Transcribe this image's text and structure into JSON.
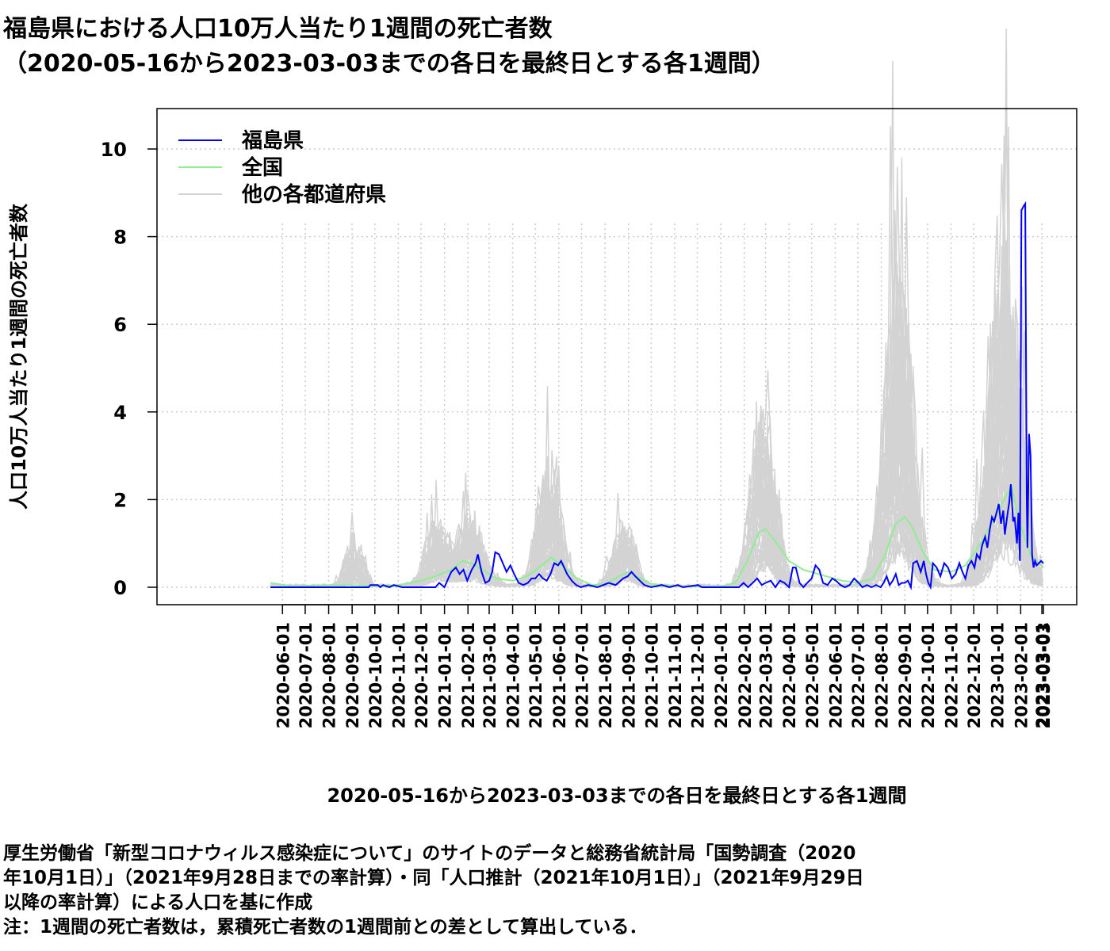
{
  "chart_data": {
    "type": "line",
    "title_line1": "福島県における人口10万人当たり1週間の死亡者数",
    "title_line2": "（2020-05-16から2023-03-03までの各日を最終日とする各1週間）",
    "xlabel": "2020-05-16から2023-03-03までの各日を最終日とする各1週間",
    "ylabel": "人口10万人当たり1週間の死亡者数",
    "x_range": [
      "2020-05-16",
      "2023-03-03"
    ],
    "ylim": [
      0,
      10.9
    ],
    "y_ticks": [
      0,
      2,
      4,
      6,
      8,
      10
    ],
    "y_tick_labels": [
      "0",
      "2",
      "4",
      "6",
      "8",
      "10"
    ],
    "x_tick_labels": [
      "2020-06-01",
      "2020-07-01",
      "2020-08-01",
      "2020-09-01",
      "2020-10-01",
      "2020-11-01",
      "2020-12-01",
      "2021-01-01",
      "2021-02-01",
      "2021-03-01",
      "2021-04-01",
      "2021-05-01",
      "2021-06-01",
      "2021-07-01",
      "2021-08-01",
      "2021-09-01",
      "2021-10-01",
      "2021-11-01",
      "2021-12-01",
      "2022-01-01",
      "2022-02-01",
      "2022-03-01",
      "2022-04-01",
      "2022-05-01",
      "2022-06-01",
      "2022-07-01",
      "2022-08-01",
      "2022-09-01",
      "2022-10-01",
      "2022-11-01",
      "2022-12-01",
      "2023-01-01",
      "2023-02-01",
      "2023-03-01"
    ],
    "x_end_tick": "2023-03-03",
    "grid": true,
    "legend_position": "top-left",
    "series": [
      {
        "name": "福島県",
        "color": "#0000ff",
        "points": [
          [
            "2020-05-16",
            0
          ],
          [
            "2020-09-23",
            0
          ],
          [
            "2020-09-25",
            0.05
          ],
          [
            "2020-10-05",
            0.05
          ],
          [
            "2020-10-08",
            0
          ],
          [
            "2020-10-12",
            0.05
          ],
          [
            "2020-10-20",
            0
          ],
          [
            "2020-10-26",
            0.05
          ],
          [
            "2020-11-06",
            0
          ],
          [
            "2020-12-20",
            0
          ],
          [
            "2020-12-25",
            0.1
          ],
          [
            "2021-01-01",
            0
          ],
          [
            "2021-01-06",
            0.2
          ],
          [
            "2021-01-10",
            0.35
          ],
          [
            "2021-01-16",
            0.45
          ],
          [
            "2021-01-21",
            0.3
          ],
          [
            "2021-01-26",
            0.4
          ],
          [
            "2021-01-31",
            0.15
          ],
          [
            "2021-02-06",
            0.4
          ],
          [
            "2021-02-11",
            0.55
          ],
          [
            "2021-02-14",
            0.75
          ],
          [
            "2021-02-19",
            0.35
          ],
          [
            "2021-02-24",
            0.1
          ],
          [
            "2021-03-01",
            0.15
          ],
          [
            "2021-03-05",
            0.35
          ],
          [
            "2021-03-09",
            0.8
          ],
          [
            "2021-03-14",
            0.75
          ],
          [
            "2021-03-19",
            0.55
          ],
          [
            "2021-03-24",
            0.35
          ],
          [
            "2021-03-29",
            0.5
          ],
          [
            "2021-04-03",
            0.3
          ],
          [
            "2021-04-09",
            0.1
          ],
          [
            "2021-04-15",
            0.05
          ],
          [
            "2021-04-21",
            0.1
          ],
          [
            "2021-04-26",
            0.2
          ],
          [
            "2021-05-01",
            0.2
          ],
          [
            "2021-05-06",
            0.3
          ],
          [
            "2021-05-11",
            0.2
          ],
          [
            "2021-05-16",
            0.15
          ],
          [
            "2021-05-21",
            0.3
          ],
          [
            "2021-05-26",
            0.55
          ],
          [
            "2021-05-31",
            0.5
          ],
          [
            "2021-06-04",
            0.6
          ],
          [
            "2021-06-08",
            0.45
          ],
          [
            "2021-06-12",
            0.3
          ],
          [
            "2021-06-18",
            0.15
          ],
          [
            "2021-06-24",
            0.05
          ],
          [
            "2021-06-30",
            0
          ],
          [
            "2021-07-10",
            0.05
          ],
          [
            "2021-07-22",
            0
          ],
          [
            "2021-08-06",
            0.1
          ],
          [
            "2021-08-15",
            0.05
          ],
          [
            "2021-08-25",
            0.2
          ],
          [
            "2021-08-31",
            0.25
          ],
          [
            "2021-09-05",
            0.35
          ],
          [
            "2021-09-10",
            0.25
          ],
          [
            "2021-09-16",
            0.15
          ],
          [
            "2021-09-22",
            0.05
          ],
          [
            "2021-10-01",
            0
          ],
          [
            "2021-10-15",
            0.05
          ],
          [
            "2021-10-25",
            0
          ],
          [
            "2021-11-05",
            0.05
          ],
          [
            "2021-11-12",
            0
          ],
          [
            "2021-12-02",
            0.05
          ],
          [
            "2021-12-07",
            0
          ],
          [
            "2022-01-25",
            0
          ],
          [
            "2022-01-31",
            0.1
          ],
          [
            "2022-02-06",
            0
          ],
          [
            "2022-02-12",
            0.1
          ],
          [
            "2022-02-18",
            0.2
          ],
          [
            "2022-02-24",
            0.05
          ],
          [
            "2022-03-01",
            0.1
          ],
          [
            "2022-03-08",
            0.15
          ],
          [
            "2022-03-14",
            0
          ],
          [
            "2022-03-20",
            0.15
          ],
          [
            "2022-03-26",
            0.1
          ],
          [
            "2022-04-01",
            0
          ],
          [
            "2022-04-06",
            0.45
          ],
          [
            "2022-04-10",
            0.45
          ],
          [
            "2022-04-15",
            0.1
          ],
          [
            "2022-04-20",
            0
          ],
          [
            "2022-04-25",
            0.1
          ],
          [
            "2022-05-01",
            0.2
          ],
          [
            "2022-05-06",
            0.5
          ],
          [
            "2022-05-11",
            0.4
          ],
          [
            "2022-05-16",
            0.1
          ],
          [
            "2022-05-22",
            0.05
          ],
          [
            "2022-05-28",
            0.2
          ],
          [
            "2022-06-02",
            0.15
          ],
          [
            "2022-06-08",
            0.05
          ],
          [
            "2022-06-14",
            0
          ],
          [
            "2022-06-20",
            0.05
          ],
          [
            "2022-06-26",
            0.2
          ],
          [
            "2022-07-02",
            0.1
          ],
          [
            "2022-07-07",
            0
          ],
          [
            "2022-07-13",
            0.05
          ],
          [
            "2022-07-19",
            0
          ],
          [
            "2022-07-25",
            0.05
          ],
          [
            "2022-07-31",
            0
          ],
          [
            "2022-08-04",
            0.1
          ],
          [
            "2022-08-08",
            0.25
          ],
          [
            "2022-08-12",
            0.05
          ],
          [
            "2022-08-16",
            0.15
          ],
          [
            "2022-08-20",
            0.3
          ],
          [
            "2022-08-24",
            0.05
          ],
          [
            "2022-08-28",
            0.1
          ],
          [
            "2022-09-01",
            0.1
          ],
          [
            "2022-09-05",
            0.15
          ],
          [
            "2022-09-09",
            0
          ],
          [
            "2022-09-12",
            0.55
          ],
          [
            "2022-09-17",
            0.6
          ],
          [
            "2022-09-22",
            0.35
          ],
          [
            "2022-09-26",
            0.6
          ],
          [
            "2022-09-29",
            0.3
          ],
          [
            "2022-10-02",
            0.1
          ],
          [
            "2022-10-05",
            0
          ],
          [
            "2022-10-08",
            0.55
          ],
          [
            "2022-10-13",
            0.45
          ],
          [
            "2022-10-18",
            0.25
          ],
          [
            "2022-10-23",
            0.55
          ],
          [
            "2022-10-28",
            0.45
          ],
          [
            "2022-11-02",
            0.2
          ],
          [
            "2022-11-07",
            0.3
          ],
          [
            "2022-11-12",
            0.55
          ],
          [
            "2022-11-16",
            0.35
          ],
          [
            "2022-11-20",
            0.2
          ],
          [
            "2022-11-24",
            0.5
          ],
          [
            "2022-11-28",
            0.6
          ],
          [
            "2022-12-02",
            0.45
          ],
          [
            "2022-12-05",
            0.75
          ],
          [
            "2022-12-09",
            0.65
          ],
          [
            "2022-12-12",
            0.95
          ],
          [
            "2022-12-16",
            1.15
          ],
          [
            "2022-12-19",
            0.9
          ],
          [
            "2022-12-22",
            1.3
          ],
          [
            "2022-12-25",
            1.6
          ],
          [
            "2022-12-28",
            1.5
          ],
          [
            "2022-12-31",
            1.7
          ],
          [
            "2023-01-03",
            1.9
          ],
          [
            "2023-01-06",
            1.45
          ],
          [
            "2023-01-09",
            1.75
          ],
          [
            "2023-01-11",
            1.2
          ],
          [
            "2023-01-14",
            1.6
          ],
          [
            "2023-01-17",
            1.95
          ],
          [
            "2023-01-19",
            2.35
          ],
          [
            "2023-01-22",
            1.5
          ],
          [
            "2023-01-24",
            1.6
          ],
          [
            "2023-01-27",
            1.0
          ],
          [
            "2023-01-29",
            1.7
          ],
          [
            "2023-01-31",
            0.6
          ],
          [
            "2023-02-02",
            8.6
          ],
          [
            "2023-02-05",
            8.7
          ],
          [
            "2023-02-07",
            8.75
          ],
          [
            "2023-02-09",
            2.0
          ],
          [
            "2023-02-10",
            0.9
          ],
          [
            "2023-02-12",
            3.5
          ],
          [
            "2023-02-14",
            3.0
          ],
          [
            "2023-02-16",
            0.75
          ],
          [
            "2023-02-18",
            0.45
          ],
          [
            "2023-02-20",
            0.6
          ],
          [
            "2023-02-22",
            0.5
          ],
          [
            "2023-02-25",
            0.55
          ],
          [
            "2023-02-28",
            0.6
          ],
          [
            "2023-03-03",
            0.55
          ]
        ]
      },
      {
        "name": "全国",
        "color": "#90ee90",
        "points": [
          [
            "2020-05-16",
            0.1
          ],
          [
            "2020-06-15",
            0.02
          ],
          [
            "2020-08-01",
            0.05
          ],
          [
            "2020-09-01",
            0.05
          ],
          [
            "2020-10-01",
            0.03
          ],
          [
            "2020-11-01",
            0.05
          ],
          [
            "2020-12-01",
            0.15
          ],
          [
            "2020-12-20",
            0.25
          ],
          [
            "2021-01-10",
            0.4
          ],
          [
            "2021-01-25",
            0.6
          ],
          [
            "2021-02-05",
            0.55
          ],
          [
            "2021-02-20",
            0.4
          ],
          [
            "2021-03-10",
            0.2
          ],
          [
            "2021-04-01",
            0.15
          ],
          [
            "2021-04-20",
            0.25
          ],
          [
            "2021-05-10",
            0.5
          ],
          [
            "2021-05-22",
            0.68
          ],
          [
            "2021-06-05",
            0.5
          ],
          [
            "2021-06-25",
            0.2
          ],
          [
            "2021-07-15",
            0.05
          ],
          [
            "2021-08-01",
            0.07
          ],
          [
            "2021-08-20",
            0.25
          ],
          [
            "2021-09-01",
            0.35
          ],
          [
            "2021-09-12",
            0.25
          ],
          [
            "2021-10-01",
            0.08
          ],
          [
            "2021-11-01",
            0.02
          ],
          [
            "2022-01-01",
            0.01
          ],
          [
            "2022-01-20",
            0.1
          ],
          [
            "2022-02-05",
            0.6
          ],
          [
            "2022-02-20",
            1.25
          ],
          [
            "2022-03-01",
            1.32
          ],
          [
            "2022-03-12",
            1.1
          ],
          [
            "2022-04-01",
            0.6
          ],
          [
            "2022-04-20",
            0.4
          ],
          [
            "2022-05-10",
            0.3
          ],
          [
            "2022-06-10",
            0.15
          ],
          [
            "2022-07-01",
            0.1
          ],
          [
            "2022-07-20",
            0.2
          ],
          [
            "2022-08-05",
            0.7
          ],
          [
            "2022-08-20",
            1.45
          ],
          [
            "2022-09-01",
            1.6
          ],
          [
            "2022-09-10",
            1.4
          ],
          [
            "2022-09-25",
            0.8
          ],
          [
            "2022-10-10",
            0.4
          ],
          [
            "2022-11-01",
            0.35
          ],
          [
            "2022-11-20",
            0.5
          ],
          [
            "2022-12-10",
            1.0
          ],
          [
            "2022-12-30",
            1.6
          ],
          [
            "2023-01-10",
            2.0
          ],
          [
            "2023-01-20",
            2.3
          ],
          [
            "2023-01-30",
            1.5
          ],
          [
            "2023-02-15",
            0.7
          ],
          [
            "2023-03-03",
            0.45
          ]
        ]
      },
      {
        "name": "他の各都道府県",
        "color": "#d3d3d3",
        "points": []
      }
    ]
  },
  "notes": [
    "厚生労働省「新型コロナウィルス感染症について」のサイトのデータと総務省統計局「国勢調査（2020",
    "年10月1日）」（2021年9月28日までの率計算）・同「人口推計（2021年10月1日）」（2021年9月29日",
    "以降の率計算）による人口を基に作成",
    "注：1週間の死亡者数は，累積死亡者数の1週間前との差として算出している．"
  ]
}
